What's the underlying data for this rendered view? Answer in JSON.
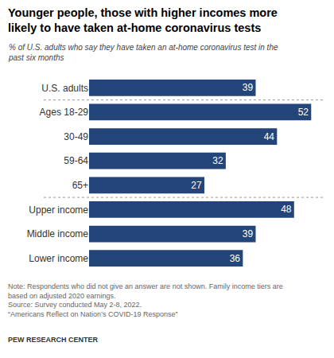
{
  "chart_data": {
    "type": "bar",
    "orientation": "horizontal",
    "title": [
      "Younger people, those with higher incomes more",
      "likely to have taken at-home coronavirus tests"
    ],
    "subtitle": [
      "% of U.S. adults who say they have taken an at-home coronavirus test in the",
      "past six months"
    ],
    "categories": [
      "U.S. adults",
      "Ages 18-29",
      "30-49",
      "59-64",
      "65+",
      "Upper income",
      "Middle income",
      "Lower income"
    ],
    "values": [
      39,
      52,
      44,
      32,
      27,
      48,
      39,
      36
    ],
    "color": "#24457a",
    "data_labels": true,
    "tick_labels": "y",
    "grid": false,
    "notes": [
      "Note: Respondents who did not give an answer are not shown. Family income tiers are",
      "based on adjusted 2020 earnings.",
      "Source: Survey conducted May 2-8, 2022.",
      "“Americans Reflect on Nation’s COVID-19 Response”"
    ],
    "credit": "PEW RESEARCH CENTER"
  }
}
